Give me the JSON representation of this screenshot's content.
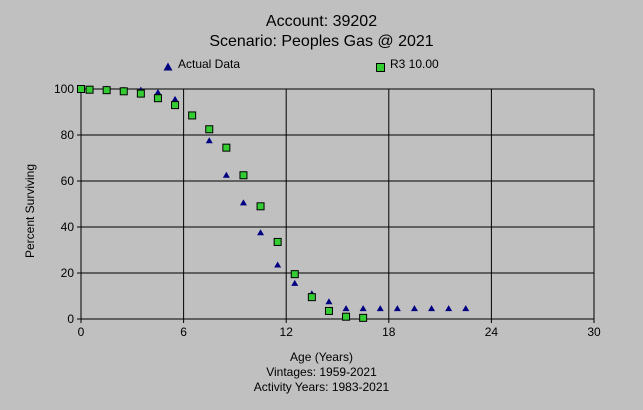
{
  "colors": {
    "background": "#c0c0c0",
    "actual_marker": "#000080",
    "fit_marker_fill": "#33cc33",
    "fit_marker_stroke": "#000000",
    "grid": "#000000"
  },
  "chart_data": {
    "type": "scatter",
    "title": "Account: 39202",
    "subtitle": "Scenario: Peoples Gas @ 2021",
    "xlabel": "Age (Years)",
    "ylabel": "Percent Surviving",
    "footnotes": [
      "Vintages: 1959-2021",
      "Activity Years: 1983-2021"
    ],
    "xlim": [
      0,
      30
    ],
    "ylim": [
      0,
      100
    ],
    "x_ticks": [
      0,
      6,
      12,
      18,
      24,
      30
    ],
    "y_ticks": [
      0,
      20,
      40,
      60,
      80,
      100
    ],
    "grid": true,
    "legend_position": "top",
    "series": [
      {
        "name": "Actual Data",
        "marker": "triangle",
        "color": "#000080",
        "x": [
          0,
          0.5,
          1.5,
          2.5,
          3.5,
          4.5,
          5.5,
          6.5,
          7.5,
          8.5,
          9.5,
          10.5,
          11.5,
          12.5,
          13.5,
          14.5,
          15.5,
          16.5,
          17.5,
          18.5,
          19.5,
          20.5,
          21.5,
          22.5
        ],
        "y": [
          100,
          100,
          100,
          99.5,
          99.5,
          98.5,
          95.5,
          88.5,
          77.5,
          62.5,
          50.5,
          37.5,
          23.5,
          15.5,
          11,
          7.5,
          4.5,
          4.5,
          4.5,
          4.5,
          4.5,
          4.5,
          4.5,
          4.5
        ]
      },
      {
        "name": "R3 10.00",
        "marker": "square",
        "color": "#33cc33",
        "x": [
          0,
          0.5,
          1.5,
          2.5,
          3.5,
          4.5,
          5.5,
          6.5,
          7.5,
          8.5,
          9.5,
          10.5,
          11.5,
          12.5,
          13.5,
          14.5,
          15.5,
          16.5
        ],
        "y": [
          100,
          99.7,
          99.5,
          99,
          98,
          96,
          93,
          88.5,
          82.5,
          74.5,
          62.5,
          49,
          33.5,
          19.5,
          9.5,
          3.5,
          1,
          0.5
        ]
      }
    ]
  }
}
